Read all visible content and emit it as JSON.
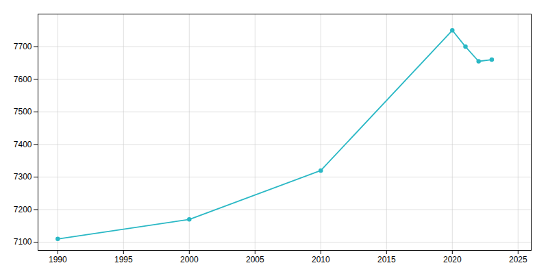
{
  "chart_data": {
    "type": "line",
    "x": [
      1990,
      2000,
      2010,
      2020,
      2021,
      2022,
      2023
    ],
    "values": [
      7110,
      7170,
      7320,
      7750,
      7700,
      7655,
      7660
    ],
    "color": "#2ab8c5",
    "marker": "circle",
    "xlim": [
      1988.5,
      2026
    ],
    "ylim": [
      7075,
      7800
    ],
    "xticks": [
      1990,
      1995,
      2000,
      2005,
      2010,
      2015,
      2020,
      2025
    ],
    "yticks": [
      7100,
      7200,
      7300,
      7400,
      7500,
      7600,
      7700
    ],
    "grid": true
  }
}
